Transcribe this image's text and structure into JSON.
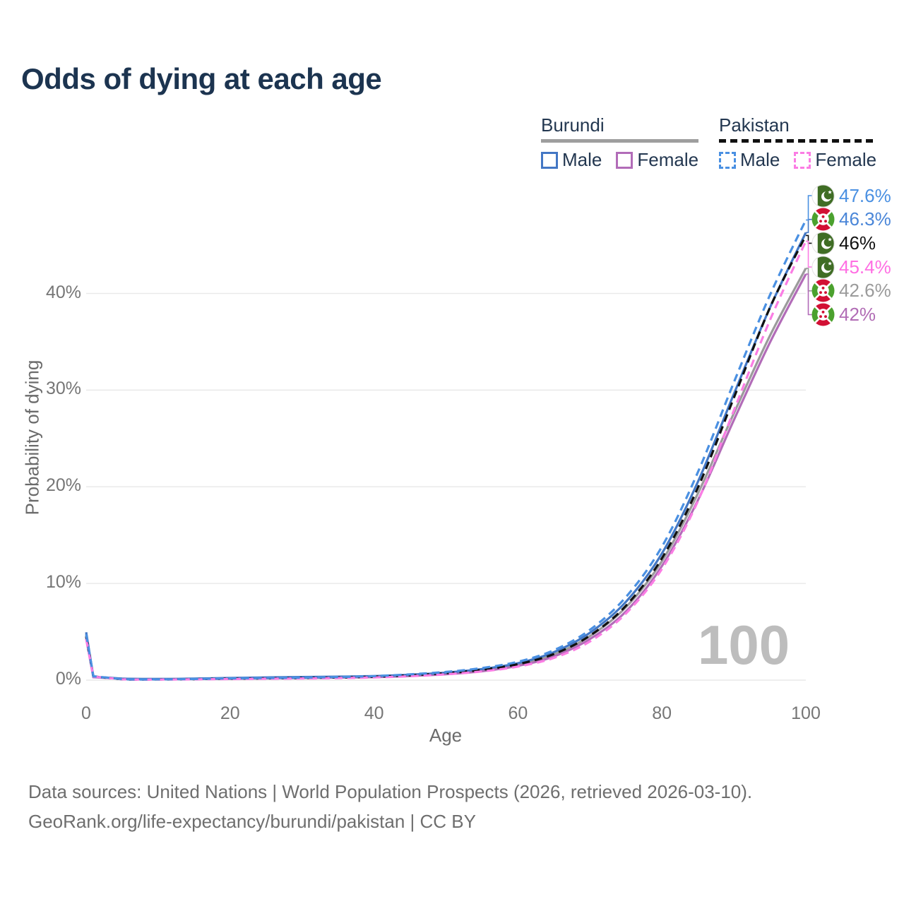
{
  "title": "Odds of dying at each age",
  "legend": {
    "groups": [
      {
        "name": "Burundi",
        "line_style": "solid",
        "underline_color": "#9e9e9e",
        "items": [
          {
            "label": "Male",
            "color": "#4377c4",
            "dashed": false,
            "series_key": "bu_male"
          },
          {
            "label": "Female",
            "color": "#b26cb8",
            "dashed": false,
            "series_key": "bu_female"
          }
        ]
      },
      {
        "name": "Pakistan",
        "line_style": "dashed",
        "underline_color": "#111111",
        "items": [
          {
            "label": "Male",
            "color": "#4a90e2",
            "dashed": true,
            "series_key": "pk_male"
          },
          {
            "label": "Female",
            "color": "#fb7de4",
            "dashed": true,
            "series_key": "pk_female"
          }
        ]
      }
    ]
  },
  "axes": {
    "y_label": "Probability of dying",
    "x_label": "Age",
    "y_tick_labels": [
      "0%",
      "10%",
      "20%",
      "30%",
      "40%"
    ],
    "y_tick_values": [
      0,
      10,
      20,
      30,
      40
    ],
    "x_tick_labels": [
      "0",
      "20",
      "40",
      "60",
      "80",
      "100"
    ],
    "x_tick_values": [
      0,
      20,
      40,
      60,
      80,
      100
    ]
  },
  "watermark": "100",
  "end_labels": [
    {
      "text": "47.6%",
      "flag": "pakistan",
      "color": "#4a90e2",
      "series_key": "pk_male"
    },
    {
      "text": "46.3%",
      "flag": "burundi",
      "color": "#4a86d8",
      "series_key": "bu_male"
    },
    {
      "text": "46%",
      "flag": "pakistan",
      "color": "#111111",
      "series_key": "pk_total"
    },
    {
      "text": "45.4%",
      "flag": "pakistan",
      "color": "#ff6fe3",
      "series_key": "pk_female"
    },
    {
      "text": "42.6%",
      "flag": "burundi",
      "color": "#9b9b9b",
      "series_key": "bu_total"
    },
    {
      "text": "42%",
      "flag": "burundi",
      "color": "#b16cb5",
      "series_key": "bu_female"
    }
  ],
  "source": {
    "line1": "Data sources: United Nations | World Population Prospects (2026, retrieved 2026-03-10).",
    "line2": "GeoRank.org/life-expectancy/burundi/pakistan | CC BY"
  },
  "chart_data": {
    "type": "line",
    "title": "Odds of dying at each age",
    "xlabel": "Age",
    "ylabel": "Probability of dying",
    "xlim": [
      0,
      100
    ],
    "ylim": [
      0,
      50
    ],
    "grid": "horizontal-only",
    "legend_position": "top-right",
    "y_ticks_percent": [
      0,
      10,
      20,
      30,
      40
    ],
    "x": [
      0,
      1,
      5,
      10,
      15,
      20,
      25,
      30,
      35,
      40,
      45,
      50,
      55,
      60,
      65,
      70,
      75,
      80,
      85,
      90,
      95,
      100
    ],
    "series": [
      {
        "key": "bu_total",
        "name": "Burundi",
        "country": "Burundi",
        "sex": "Both",
        "color": "#9b9b9b",
        "dash": false,
        "end_value_percent": 42.6,
        "values": [
          4.6,
          0.33,
          0.14,
          0.11,
          0.13,
          0.18,
          0.23,
          0.27,
          0.31,
          0.36,
          0.49,
          0.69,
          1.02,
          1.6,
          2.65,
          4.55,
          7.55,
          12.3,
          19.3,
          27.6,
          35.6,
          42.6
        ]
      },
      {
        "key": "bu_female",
        "name": "Burundi Female",
        "country": "Burundi",
        "sex": "Female",
        "color": "#b26cb8",
        "dash": false,
        "end_value_percent": 42.0,
        "values": [
          4.3,
          0.31,
          0.13,
          0.1,
          0.11,
          0.14,
          0.18,
          0.22,
          0.26,
          0.31,
          0.43,
          0.61,
          0.92,
          1.48,
          2.45,
          4.25,
          7.1,
          11.8,
          18.6,
          26.9,
          34.9,
          42.0
        ]
      },
      {
        "key": "bu_male",
        "name": "Burundi Male",
        "country": "Burundi",
        "sex": "Male",
        "color": "#4377c4",
        "dash": false,
        "end_value_percent": 46.3,
        "values": [
          4.95,
          0.35,
          0.15,
          0.12,
          0.15,
          0.22,
          0.28,
          0.32,
          0.36,
          0.42,
          0.56,
          0.78,
          1.15,
          1.75,
          2.9,
          4.9,
          8.1,
          13.1,
          20.5,
          29.6,
          38.5,
          46.3
        ]
      },
      {
        "key": "pk_total",
        "name": "Pakistan",
        "country": "Pakistan",
        "sex": "Both",
        "color": "#111111",
        "dash": true,
        "end_value_percent": 46.0,
        "values": [
          4.5,
          0.38,
          0.09,
          0.07,
          0.1,
          0.15,
          0.18,
          0.22,
          0.27,
          0.35,
          0.5,
          0.72,
          1.07,
          1.65,
          2.7,
          4.6,
          7.7,
          12.6,
          19.9,
          29.2,
          38.5,
          46.0
        ]
      },
      {
        "key": "pk_female",
        "name": "Pakistan Female",
        "country": "Pakistan",
        "sex": "Female",
        "color": "#fb7de4",
        "dash": true,
        "end_value_percent": 45.4,
        "values": [
          4.25,
          0.36,
          0.09,
          0.06,
          0.08,
          0.11,
          0.14,
          0.17,
          0.21,
          0.28,
          0.4,
          0.6,
          0.9,
          1.4,
          2.3,
          4.0,
          6.9,
          11.5,
          18.5,
          27.9,
          37.2,
          45.4
        ]
      },
      {
        "key": "pk_male",
        "name": "Pakistan Male",
        "country": "Pakistan",
        "sex": "Male",
        "color": "#4a90e2",
        "dash": true,
        "end_value_percent": 47.6,
        "values": [
          4.75,
          0.4,
          0.1,
          0.08,
          0.12,
          0.18,
          0.22,
          0.26,
          0.32,
          0.42,
          0.6,
          0.85,
          1.25,
          1.9,
          3.1,
          5.2,
          8.6,
          13.8,
          21.5,
          30.8,
          39.8,
          47.6
        ]
      }
    ]
  }
}
